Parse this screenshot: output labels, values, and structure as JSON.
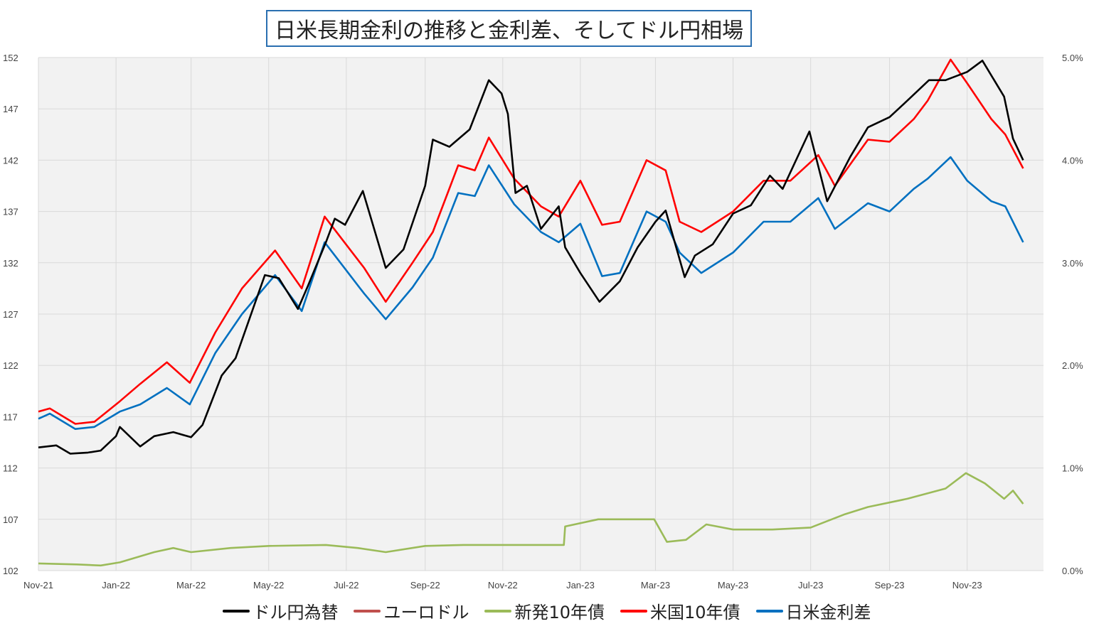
{
  "title": "日米長期金利の推移と金利差、そしてドル円相場",
  "colors": {
    "usdjpy": "#000000",
    "eurusd": "#c0504d",
    "jgb10": "#9bbb59",
    "ust10": "#ff0000",
    "spread": "#0070c0",
    "plot_bg": "#f2f2f2",
    "grid": "#d9d9d9"
  },
  "chart_data": {
    "type": "line",
    "x_axis": {
      "type": "date",
      "range": [
        "2021-11-01",
        "2023-12-31"
      ],
      "tick_labels": [
        "Nov-21",
        "Jan-22",
        "Mar-22",
        "May-22",
        "Jul-22",
        "Sep-22",
        "Nov-22",
        "Jan-23",
        "Mar-23",
        "May-23",
        "Jul-23",
        "Sep-23",
        "Nov-23"
      ]
    },
    "y_left": {
      "ylim": [
        102,
        152
      ],
      "ticks": [
        102,
        107,
        112,
        117,
        122,
        127,
        132,
        137,
        142,
        147,
        152
      ]
    },
    "y_right": {
      "ylim": [
        0,
        5
      ],
      "ticks": [
        "0.0%",
        "1.0%",
        "2.0%",
        "3.0%",
        "4.0%",
        "5.0%"
      ]
    },
    "grid": true,
    "legend": "bottom",
    "series": [
      {
        "name": "ドル円為替",
        "axis": "left",
        "color_key": "usdjpy",
        "points": [
          [
            "2021-11-01",
            114.0
          ],
          [
            "2021-11-15",
            114.2
          ],
          [
            "2021-11-26",
            113.4
          ],
          [
            "2021-12-10",
            113.5
          ],
          [
            "2021-12-20",
            113.7
          ],
          [
            "2022-01-01",
            115.1
          ],
          [
            "2022-01-04",
            116.0
          ],
          [
            "2022-01-20",
            114.1
          ],
          [
            "2022-01-31",
            115.1
          ],
          [
            "2022-02-15",
            115.5
          ],
          [
            "2022-03-01",
            115.0
          ],
          [
            "2022-03-10",
            116.2
          ],
          [
            "2022-03-25",
            121.0
          ],
          [
            "2022-04-05",
            122.7
          ],
          [
            "2022-04-20",
            128.0
          ],
          [
            "2022-04-28",
            130.8
          ],
          [
            "2022-05-09",
            130.5
          ],
          [
            "2022-05-24",
            127.5
          ],
          [
            "2022-06-01",
            129.8
          ],
          [
            "2022-06-15",
            134.0
          ],
          [
            "2022-06-22",
            136.3
          ],
          [
            "2022-06-30",
            135.7
          ],
          [
            "2022-07-14",
            139.0
          ],
          [
            "2022-08-01",
            131.5
          ],
          [
            "2022-08-15",
            133.3
          ],
          [
            "2022-09-01",
            139.5
          ],
          [
            "2022-09-07",
            144.0
          ],
          [
            "2022-09-20",
            143.3
          ],
          [
            "2022-10-06",
            145.0
          ],
          [
            "2022-10-21",
            149.8
          ],
          [
            "2022-10-31",
            148.5
          ],
          [
            "2022-11-05",
            146.5
          ],
          [
            "2022-11-11",
            138.8
          ],
          [
            "2022-11-20",
            139.5
          ],
          [
            "2022-12-01",
            135.3
          ],
          [
            "2022-12-15",
            137.5
          ],
          [
            "2022-12-20",
            133.5
          ],
          [
            "2023-01-01",
            131.0
          ],
          [
            "2023-01-16",
            128.2
          ],
          [
            "2023-02-01",
            130.2
          ],
          [
            "2023-02-15",
            133.5
          ],
          [
            "2023-03-01",
            136.0
          ],
          [
            "2023-03-09",
            137.1
          ],
          [
            "2023-03-24",
            130.6
          ],
          [
            "2023-04-01",
            132.7
          ],
          [
            "2023-04-15",
            133.8
          ],
          [
            "2023-05-01",
            136.8
          ],
          [
            "2023-05-15",
            137.6
          ],
          [
            "2023-05-30",
            140.5
          ],
          [
            "2023-06-09",
            139.2
          ],
          [
            "2023-06-30",
            144.8
          ],
          [
            "2023-07-14",
            138.0
          ],
          [
            "2023-08-01",
            142.3
          ],
          [
            "2023-08-15",
            145.2
          ],
          [
            "2023-09-01",
            146.2
          ],
          [
            "2023-09-15",
            147.8
          ],
          [
            "2023-10-02",
            149.8
          ],
          [
            "2023-10-15",
            149.8
          ],
          [
            "2023-11-01",
            150.6
          ],
          [
            "2023-11-13",
            151.7
          ],
          [
            "2023-11-30",
            148.2
          ],
          [
            "2023-12-07",
            144.1
          ],
          [
            "2023-12-15",
            142.0
          ]
        ]
      },
      {
        "name": "ユーロドル",
        "axis": "left",
        "color_key": "eurusd",
        "points": []
      },
      {
        "name": "新発10年債",
        "axis": "right",
        "color_key": "jgb10",
        "points": [
          [
            "2021-11-01",
            0.07
          ],
          [
            "2021-12-01",
            0.06
          ],
          [
            "2021-12-20",
            0.05
          ],
          [
            "2022-01-04",
            0.08
          ],
          [
            "2022-01-31",
            0.18
          ],
          [
            "2022-02-15",
            0.22
          ],
          [
            "2022-03-01",
            0.18
          ],
          [
            "2022-04-01",
            0.22
          ],
          [
            "2022-05-01",
            0.24
          ],
          [
            "2022-06-15",
            0.25
          ],
          [
            "2022-07-10",
            0.22
          ],
          [
            "2022-08-01",
            0.18
          ],
          [
            "2022-09-01",
            0.24
          ],
          [
            "2022-10-01",
            0.25
          ],
          [
            "2022-11-01",
            0.25
          ],
          [
            "2022-12-19",
            0.25
          ],
          [
            "2022-12-20",
            0.43
          ],
          [
            "2023-01-15",
            0.5
          ],
          [
            "2023-02-15",
            0.5
          ],
          [
            "2023-02-28",
            0.5
          ],
          [
            "2023-03-10",
            0.28
          ],
          [
            "2023-03-25",
            0.3
          ],
          [
            "2023-04-10",
            0.45
          ],
          [
            "2023-05-01",
            0.4
          ],
          [
            "2023-06-01",
            0.4
          ],
          [
            "2023-07-01",
            0.42
          ],
          [
            "2023-07-28",
            0.55
          ],
          [
            "2023-08-15",
            0.62
          ],
          [
            "2023-09-15",
            0.7
          ],
          [
            "2023-10-15",
            0.8
          ],
          [
            "2023-10-31",
            0.95
          ],
          [
            "2023-11-15",
            0.85
          ],
          [
            "2023-11-30",
            0.7
          ],
          [
            "2023-12-07",
            0.78
          ],
          [
            "2023-12-15",
            0.65
          ]
        ]
      },
      {
        "name": "米国10年債",
        "axis": "right",
        "color_key": "ust10",
        "points": [
          [
            "2021-11-01",
            1.55
          ],
          [
            "2021-11-10",
            1.58
          ],
          [
            "2021-11-30",
            1.43
          ],
          [
            "2021-12-15",
            1.45
          ],
          [
            "2022-01-04",
            1.65
          ],
          [
            "2022-01-20",
            1.82
          ],
          [
            "2022-02-10",
            2.03
          ],
          [
            "2022-02-28",
            1.83
          ],
          [
            "2022-03-20",
            2.32
          ],
          [
            "2022-04-10",
            2.75
          ],
          [
            "2022-05-06",
            3.12
          ],
          [
            "2022-05-27",
            2.75
          ],
          [
            "2022-06-14",
            3.45
          ],
          [
            "2022-07-15",
            2.95
          ],
          [
            "2022-08-01",
            2.62
          ],
          [
            "2022-08-22",
            3.0
          ],
          [
            "2022-09-07",
            3.3
          ],
          [
            "2022-09-27",
            3.95
          ],
          [
            "2022-10-10",
            3.9
          ],
          [
            "2022-10-21",
            4.22
          ],
          [
            "2022-11-10",
            3.82
          ],
          [
            "2022-12-01",
            3.55
          ],
          [
            "2022-12-15",
            3.45
          ],
          [
            "2023-01-01",
            3.8
          ],
          [
            "2023-01-18",
            3.37
          ],
          [
            "2023-02-01",
            3.4
          ],
          [
            "2023-02-22",
            4.0
          ],
          [
            "2023-03-09",
            3.9
          ],
          [
            "2023-03-20",
            3.4
          ],
          [
            "2023-04-06",
            3.3
          ],
          [
            "2023-05-01",
            3.5
          ],
          [
            "2023-05-25",
            3.8
          ],
          [
            "2023-06-15",
            3.8
          ],
          [
            "2023-07-07",
            4.05
          ],
          [
            "2023-07-20",
            3.75
          ],
          [
            "2023-08-15",
            4.2
          ],
          [
            "2023-09-01",
            4.18
          ],
          [
            "2023-09-20",
            4.4
          ],
          [
            "2023-10-01",
            4.58
          ],
          [
            "2023-10-19",
            4.98
          ],
          [
            "2023-11-01",
            4.75
          ],
          [
            "2023-11-20",
            4.4
          ],
          [
            "2023-12-01",
            4.25
          ],
          [
            "2023-12-15",
            3.92
          ]
        ]
      },
      {
        "name": "日米金利差",
        "axis": "right",
        "color_key": "spread",
        "points": [
          [
            "2021-11-01",
            1.48
          ],
          [
            "2021-11-10",
            1.53
          ],
          [
            "2021-11-30",
            1.38
          ],
          [
            "2021-12-15",
            1.4
          ],
          [
            "2022-01-04",
            1.55
          ],
          [
            "2022-01-20",
            1.62
          ],
          [
            "2022-02-10",
            1.78
          ],
          [
            "2022-02-28",
            1.62
          ],
          [
            "2022-03-20",
            2.12
          ],
          [
            "2022-04-10",
            2.5
          ],
          [
            "2022-05-06",
            2.88
          ],
          [
            "2022-05-27",
            2.53
          ],
          [
            "2022-06-14",
            3.2
          ],
          [
            "2022-07-15",
            2.7
          ],
          [
            "2022-08-01",
            2.45
          ],
          [
            "2022-08-22",
            2.76
          ],
          [
            "2022-09-07",
            3.05
          ],
          [
            "2022-09-27",
            3.68
          ],
          [
            "2022-10-10",
            3.65
          ],
          [
            "2022-10-21",
            3.95
          ],
          [
            "2022-11-10",
            3.57
          ],
          [
            "2022-12-01",
            3.3
          ],
          [
            "2022-12-15",
            3.2
          ],
          [
            "2023-01-01",
            3.38
          ],
          [
            "2023-01-18",
            2.87
          ],
          [
            "2023-02-01",
            2.9
          ],
          [
            "2023-02-22",
            3.5
          ],
          [
            "2023-03-09",
            3.4
          ],
          [
            "2023-03-20",
            3.1
          ],
          [
            "2023-04-06",
            2.9
          ],
          [
            "2023-05-01",
            3.1
          ],
          [
            "2023-05-25",
            3.4
          ],
          [
            "2023-06-15",
            3.4
          ],
          [
            "2023-07-07",
            3.63
          ],
          [
            "2023-07-20",
            3.33
          ],
          [
            "2023-08-15",
            3.58
          ],
          [
            "2023-09-01",
            3.5
          ],
          [
            "2023-09-20",
            3.72
          ],
          [
            "2023-10-01",
            3.82
          ],
          [
            "2023-10-19",
            4.03
          ],
          [
            "2023-11-01",
            3.8
          ],
          [
            "2023-11-20",
            3.6
          ],
          [
            "2023-12-01",
            3.55
          ],
          [
            "2023-12-15",
            3.2
          ]
        ]
      }
    ]
  }
}
